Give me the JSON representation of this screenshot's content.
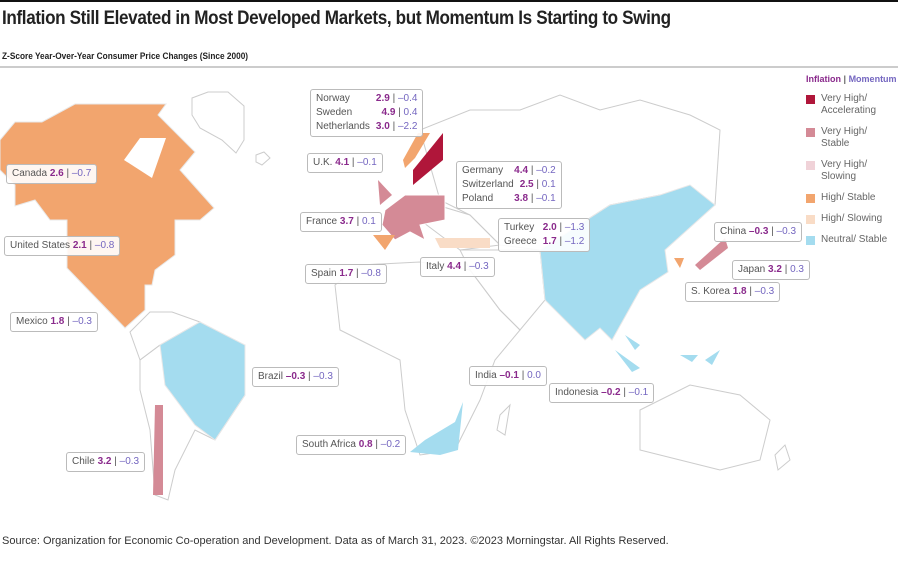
{
  "title": "Inflation Still Elevated in Most Developed Markets, but Momentum Is Starting to Swing",
  "subtitle": "Z-Score Year-Over-Year Consumer Price Changes (Since 2000)",
  "legend": {
    "inflation_label": "Inflation",
    "sep": "|",
    "momentum_label": "Momentum",
    "items": [
      {
        "label": "Very High/ Accelerating",
        "color": "#b0163a"
      },
      {
        "label": "Very High/ Stable",
        "color": "#d48a96"
      },
      {
        "label": "Very High/ Slowing",
        "color": "#f0d2d8"
      },
      {
        "label": "High/ Stable",
        "color": "#f2a56e"
      },
      {
        "label": "High/ Slowing",
        "color": "#f9dcc6"
      },
      {
        "label": "Neutral/ Stable",
        "color": "#a4dcef"
      }
    ]
  },
  "countries": {
    "canada": {
      "name": "Canada",
      "inflation": "2.6",
      "momentum": "–0.7"
    },
    "us": {
      "name": "United States",
      "inflation": "2.1",
      "momentum": "–0.8"
    },
    "mexico": {
      "name": "Mexico",
      "inflation": "1.8",
      "momentum": "–0.3"
    },
    "brazil": {
      "name": "Brazil",
      "inflation": "–0.3",
      "momentum": "–0.3"
    },
    "chile": {
      "name": "Chile",
      "inflation": "3.2",
      "momentum": "–0.3"
    },
    "norway": {
      "name": "Norway",
      "inflation": "2.9",
      "momentum": "–0.4"
    },
    "sweden": {
      "name": "Sweden",
      "inflation": "4.9",
      "momentum": "0.4"
    },
    "netherlands": {
      "name": "Netherlands",
      "inflation": "3.0",
      "momentum": "–2.2"
    },
    "uk": {
      "name": "U.K.",
      "inflation": "4.1",
      "momentum": "–0.1"
    },
    "germany": {
      "name": "Germany",
      "inflation": "4.4",
      "momentum": "–0.2"
    },
    "switzerland": {
      "name": "Switzerland",
      "inflation": "2.5",
      "momentum": "0.1"
    },
    "poland": {
      "name": "Poland",
      "inflation": "3.8",
      "momentum": "–0.1"
    },
    "france": {
      "name": "France",
      "inflation": "3.7",
      "momentum": "0.1"
    },
    "turkey": {
      "name": "Turkey",
      "inflation": "2.0",
      "momentum": "–1.3"
    },
    "greece": {
      "name": "Greece",
      "inflation": "1.7",
      "momentum": "–1.2"
    },
    "spain": {
      "name": "Spain",
      "inflation": "1.7",
      "momentum": "–0.8"
    },
    "italy": {
      "name": "Italy",
      "inflation": "4.4",
      "momentum": "–0.3"
    },
    "china": {
      "name": "China",
      "inflation": "–0.3",
      "momentum": "–0.3"
    },
    "japan": {
      "name": "Japan",
      "inflation": "3.2",
      "momentum": "0.3"
    },
    "skorea": {
      "name": "S. Korea",
      "inflation": "1.8",
      "momentum": "–0.3"
    },
    "india": {
      "name": "India",
      "inflation": "–0.1",
      "momentum": "0.0"
    },
    "indonesia": {
      "name": "Indonesia",
      "inflation": "–0.2",
      "momentum": "–0.1"
    },
    "southafrica": {
      "name": "South Africa",
      "inflation": "0.8",
      "momentum": "–0.2"
    }
  },
  "source": "Source: Organization for Economic Co-operation and Development. Data as of March 31, 2023. ©2023 Morningstar. All Rights Reserved."
}
